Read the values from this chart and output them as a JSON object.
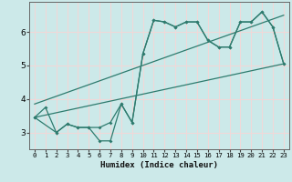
{
  "title": "",
  "xlabel": "Humidex (Indice chaleur)",
  "ylabel": "",
  "bg_color": "#cce9e9",
  "grid_color": "#f0d8d8",
  "line_color": "#2e7b6e",
  "xlim": [
    -0.5,
    23.5
  ],
  "ylim": [
    2.5,
    6.9
  ],
  "xticks": [
    0,
    1,
    2,
    3,
    4,
    5,
    6,
    7,
    8,
    9,
    10,
    11,
    12,
    13,
    14,
    15,
    16,
    17,
    18,
    19,
    20,
    21,
    22,
    23
  ],
  "yticks": [
    3,
    4,
    5,
    6
  ],
  "line1_x": [
    0,
    1,
    2,
    3,
    4,
    5,
    6,
    7,
    8,
    9,
    10,
    11,
    12,
    13,
    14,
    15,
    16,
    17,
    18,
    19,
    20,
    21,
    22,
    23
  ],
  "line1_y": [
    3.45,
    3.75,
    3.0,
    3.25,
    3.15,
    3.15,
    3.15,
    3.3,
    3.85,
    3.3,
    5.35,
    6.35,
    6.3,
    6.15,
    6.3,
    6.3,
    5.75,
    5.55,
    5.55,
    6.3,
    6.3,
    6.6,
    6.15,
    5.05
  ],
  "line2_x": [
    0,
    2,
    3,
    4,
    5,
    6,
    7,
    8,
    9,
    10,
    11,
    12,
    13,
    14,
    15,
    16,
    17,
    18,
    19,
    20,
    21,
    22,
    23
  ],
  "line2_y": [
    3.45,
    3.0,
    3.25,
    3.15,
    3.15,
    2.75,
    2.75,
    3.85,
    3.3,
    5.35,
    6.35,
    6.3,
    6.15,
    6.3,
    6.3,
    5.75,
    5.55,
    5.55,
    6.3,
    6.3,
    6.6,
    6.15,
    5.05
  ],
  "line3_x": [
    0,
    23
  ],
  "line3_y": [
    3.45,
    5.05
  ]
}
